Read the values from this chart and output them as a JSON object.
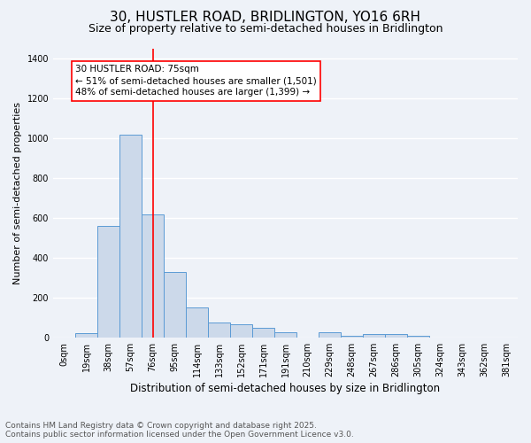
{
  "title1": "30, HUSTLER ROAD, BRIDLINGTON, YO16 6RH",
  "title2": "Size of property relative to semi-detached houses in Bridlington",
  "xlabel": "Distribution of semi-detached houses by size in Bridlington",
  "ylabel": "Number of semi-detached properties",
  "bar_labels": [
    "0sqm",
    "19sqm",
    "38sqm",
    "57sqm",
    "76sqm",
    "95sqm",
    "114sqm",
    "133sqm",
    "152sqm",
    "171sqm",
    "191sqm",
    "210sqm",
    "229sqm",
    "248sqm",
    "267sqm",
    "286sqm",
    "305sqm",
    "324sqm",
    "343sqm",
    "362sqm",
    "381sqm"
  ],
  "bar_values": [
    0,
    20,
    560,
    1020,
    620,
    330,
    150,
    75,
    65,
    50,
    25,
    0,
    25,
    10,
    15,
    15,
    10,
    0,
    0,
    0,
    0
  ],
  "bar_color": "#ccd9ea",
  "bar_edge_color": "#5b9bd5",
  "vline_x": 4,
  "vline_color": "red",
  "annotation_title": "30 HUSTLER ROAD: 75sqm",
  "annotation_line1": "← 51% of semi-detached houses are smaller (1,501)",
  "annotation_line2": "48% of semi-detached houses are larger (1,399) →",
  "annotation_box_color": "red",
  "ylim": [
    0,
    1450
  ],
  "yticks": [
    0,
    200,
    400,
    600,
    800,
    1000,
    1200,
    1400
  ],
  "footer1": "Contains HM Land Registry data © Crown copyright and database right 2025.",
  "footer2": "Contains public sector information licensed under the Open Government Licence v3.0.",
  "bg_color": "#eef2f8",
  "grid_color": "white",
  "title1_fontsize": 11,
  "title2_fontsize": 9,
  "xlabel_fontsize": 8.5,
  "ylabel_fontsize": 8,
  "tick_fontsize": 7,
  "annotation_fontsize": 7.5,
  "footer_fontsize": 6.5
}
